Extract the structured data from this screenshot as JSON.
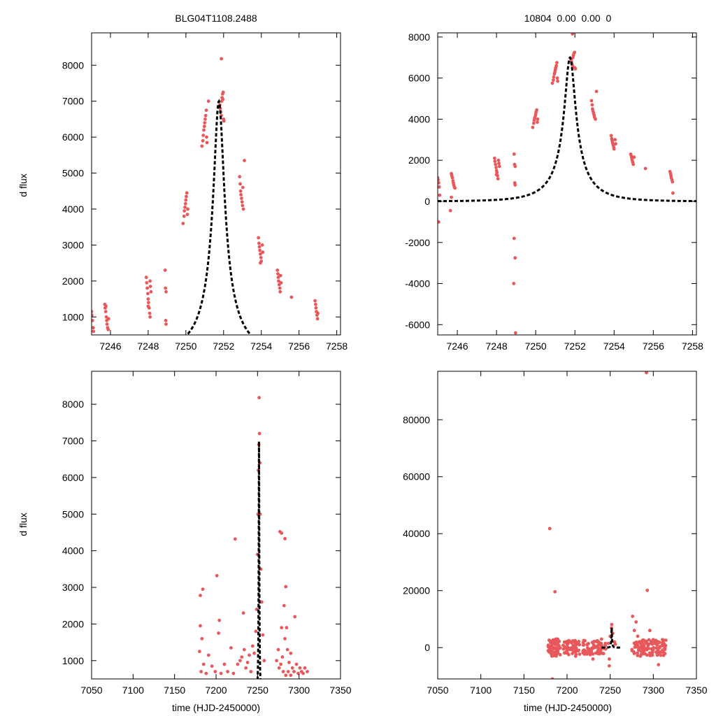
{
  "titles": {
    "left": "BLG04T1108.2488",
    "right": "10804  0.00  0.00  0"
  },
  "colors": {
    "points": "#e8585a",
    "model": "#000000",
    "frame": "#000000"
  },
  "chart_data": [
    {
      "id": "top-left",
      "type": "scatter",
      "title": "BLG04T1108.2488",
      "xlabel": "",
      "ylabel": "d flux",
      "xlim": [
        7245,
        7258.2
      ],
      "ylim": [
        500,
        8900
      ],
      "xticks": [
        7246,
        7248,
        7250,
        7252,
        7254,
        7256,
        7258
      ],
      "yticks": [
        1000,
        2000,
        3000,
        4000,
        5000,
        6000,
        7000,
        8000
      ],
      "model": {
        "t0": 7251.75,
        "peak": 7000,
        "tE": 1.9,
        "base": 0
      },
      "points": [
        [
          7245.0,
          1150
        ],
        [
          7245.02,
          1050
        ],
        [
          7245.05,
          900
        ],
        [
          7245.08,
          700
        ],
        [
          7245.1,
          600
        ],
        [
          7245.7,
          1350
        ],
        [
          7245.72,
          1250
        ],
        [
          7245.75,
          1150
        ],
        [
          7245.78,
          1000
        ],
        [
          7245.8,
          900
        ],
        [
          7245.82,
          800
        ],
        [
          7245.85,
          700
        ],
        [
          7245.88,
          650
        ],
        [
          7245.9,
          950
        ],
        [
          7245.76,
          1300
        ],
        [
          7247.9,
          2100
        ],
        [
          7247.92,
          1950
        ],
        [
          7247.95,
          1800
        ],
        [
          7247.98,
          1650
        ],
        [
          7248.0,
          1500
        ],
        [
          7248.02,
          1400
        ],
        [
          7248.05,
          1250
        ],
        [
          7248.08,
          1100
        ],
        [
          7248.1,
          2000
        ],
        [
          7248.12,
          1850
        ],
        [
          7248.15,
          1700
        ],
        [
          7248.0,
          1300
        ],
        [
          7248.1,
          1000
        ],
        [
          7248.9,
          2300
        ],
        [
          7248.92,
          1800
        ],
        [
          7248.95,
          1700
        ],
        [
          7248.93,
          900
        ],
        [
          7248.95,
          800
        ],
        [
          7249.85,
          3600
        ],
        [
          7249.9,
          3800
        ],
        [
          7249.92,
          3950
        ],
        [
          7249.95,
          4050
        ],
        [
          7249.98,
          4150
        ],
        [
          7250.0,
          4250
        ],
        [
          7250.02,
          4350
        ],
        [
          7250.05,
          4450
        ],
        [
          7250.08,
          3850
        ],
        [
          7250.1,
          4000
        ],
        [
          7250.85,
          5750
        ],
        [
          7250.9,
          5900
        ],
        [
          7250.92,
          6050
        ],
        [
          7250.95,
          6200
        ],
        [
          7250.98,
          6300
        ],
        [
          7251.0,
          6400
        ],
        [
          7251.02,
          6500
        ],
        [
          7251.05,
          6600
        ],
        [
          7251.08,
          6750
        ],
        [
          7251.1,
          6000
        ],
        [
          7251.12,
          5850
        ],
        [
          7251.2,
          7000
        ],
        [
          7251.8,
          6900
        ],
        [
          7251.82,
          6800
        ],
        [
          7251.85,
          6700
        ],
        [
          7251.88,
          6600
        ],
        [
          7251.9,
          7000
        ],
        [
          7251.92,
          7100
        ],
        [
          7251.95,
          7200
        ],
        [
          7251.98,
          7250
        ],
        [
          7252.0,
          6500
        ],
        [
          7252.02,
          6450
        ],
        [
          7251.88,
          8180
        ],
        [
          7251.96,
          7050
        ],
        [
          7252.85,
          4900
        ],
        [
          7252.88,
          4700
        ],
        [
          7252.9,
          4500
        ],
        [
          7252.92,
          4400
        ],
        [
          7252.95,
          4300
        ],
        [
          7252.98,
          4200
        ],
        [
          7253.0,
          4100
        ],
        [
          7253.05,
          4000
        ],
        [
          7253.1,
          5350
        ],
        [
          7253.02,
          4600
        ],
        [
          7253.85,
          3200
        ],
        [
          7253.88,
          3050
        ],
        [
          7253.9,
          2950
        ],
        [
          7253.92,
          2850
        ],
        [
          7253.95,
          2750
        ],
        [
          7253.98,
          2650
        ],
        [
          7254.0,
          2550
        ],
        [
          7254.05,
          3000
        ],
        [
          7254.08,
          2800
        ],
        [
          7253.95,
          2500
        ],
        [
          7254.85,
          2300
        ],
        [
          7254.88,
          2200
        ],
        [
          7254.9,
          2100
        ],
        [
          7254.92,
          2000
        ],
        [
          7254.95,
          1900
        ],
        [
          7254.98,
          1800
        ],
        [
          7255.0,
          1700
        ],
        [
          7255.02,
          2150
        ],
        [
          7255.05,
          1950
        ],
        [
          7255.6,
          1550
        ],
        [
          7256.85,
          1450
        ],
        [
          7256.88,
          1350
        ],
        [
          7256.9,
          1250
        ],
        [
          7256.92,
          1150
        ],
        [
          7256.95,
          1050
        ],
        [
          7256.98,
          950
        ],
        [
          7257.0,
          1100
        ]
      ]
    },
    {
      "id": "top-right",
      "type": "scatter",
      "title": "10804  0.00  0.00  0",
      "xlabel": "",
      "ylabel": "",
      "xlim": [
        7245,
        7258.2
      ],
      "ylim": [
        -6500,
        8200
      ],
      "xticks": [
        7246,
        7248,
        7250,
        7252,
        7254,
        7256,
        7258
      ],
      "yticks": [
        -6000,
        -4000,
        -2000,
        0,
        2000,
        4000,
        6000,
        8000
      ],
      "model": {
        "t0": 7251.75,
        "peak": 7000,
        "tE": 1.9,
        "base": 0
      },
      "points": [
        [
          7245.0,
          1150
        ],
        [
          7245.02,
          1050
        ],
        [
          7245.05,
          900
        ],
        [
          7245.08,
          700
        ],
        [
          7245.1,
          300
        ],
        [
          7245.05,
          -1000
        ],
        [
          7245.7,
          1350
        ],
        [
          7245.72,
          1250
        ],
        [
          7245.75,
          1150
        ],
        [
          7245.78,
          1000
        ],
        [
          7245.8,
          900
        ],
        [
          7245.82,
          800
        ],
        [
          7245.85,
          700
        ],
        [
          7245.88,
          650
        ],
        [
          7245.7,
          200
        ],
        [
          7245.65,
          -450
        ],
        [
          7247.9,
          2100
        ],
        [
          7247.92,
          1950
        ],
        [
          7247.95,
          1800
        ],
        [
          7247.98,
          1650
        ],
        [
          7248.0,
          1500
        ],
        [
          7248.02,
          1400
        ],
        [
          7248.05,
          1250
        ],
        [
          7248.08,
          1100
        ],
        [
          7248.1,
          2000
        ],
        [
          7248.12,
          1850
        ],
        [
          7248.15,
          1700
        ],
        [
          7248.0,
          1300
        ],
        [
          7248.9,
          2300
        ],
        [
          7248.92,
          1800
        ],
        [
          7248.95,
          1700
        ],
        [
          7248.93,
          900
        ],
        [
          7248.95,
          800
        ],
        [
          7248.9,
          -1800
        ],
        [
          7248.95,
          -2750
        ],
        [
          7248.88,
          -4000
        ],
        [
          7248.97,
          -6400
        ],
        [
          7249.85,
          3600
        ],
        [
          7249.9,
          3800
        ],
        [
          7249.92,
          3950
        ],
        [
          7249.95,
          4050
        ],
        [
          7249.98,
          4150
        ],
        [
          7250.0,
          4250
        ],
        [
          7250.02,
          4350
        ],
        [
          7250.05,
          4450
        ],
        [
          7250.08,
          3850
        ],
        [
          7250.1,
          4000
        ],
        [
          7250.85,
          5750
        ],
        [
          7250.9,
          5900
        ],
        [
          7250.92,
          6050
        ],
        [
          7250.95,
          6200
        ],
        [
          7250.98,
          6300
        ],
        [
          7251.0,
          6400
        ],
        [
          7251.02,
          6500
        ],
        [
          7251.05,
          6600
        ],
        [
          7251.08,
          6750
        ],
        [
          7251.1,
          6000
        ],
        [
          7251.12,
          5850
        ],
        [
          7251.8,
          6900
        ],
        [
          7251.82,
          6800
        ],
        [
          7251.85,
          6700
        ],
        [
          7251.88,
          6600
        ],
        [
          7251.9,
          7000
        ],
        [
          7251.92,
          7100
        ],
        [
          7251.95,
          7200
        ],
        [
          7251.98,
          7250
        ],
        [
          7252.0,
          6500
        ],
        [
          7252.02,
          6450
        ],
        [
          7251.88,
          8150
        ],
        [
          7252.85,
          4900
        ],
        [
          7252.88,
          4700
        ],
        [
          7252.9,
          4500
        ],
        [
          7252.92,
          4400
        ],
        [
          7252.95,
          4300
        ],
        [
          7252.98,
          4200
        ],
        [
          7253.0,
          4100
        ],
        [
          7253.05,
          4000
        ],
        [
          7253.1,
          5350
        ],
        [
          7253.85,
          3200
        ],
        [
          7253.88,
          3050
        ],
        [
          7253.9,
          2950
        ],
        [
          7253.92,
          2850
        ],
        [
          7253.95,
          2750
        ],
        [
          7253.98,
          2650
        ],
        [
          7254.0,
          2550
        ],
        [
          7254.05,
          3000
        ],
        [
          7254.08,
          2800
        ],
        [
          7254.85,
          2300
        ],
        [
          7254.88,
          2200
        ],
        [
          7254.9,
          2100
        ],
        [
          7254.92,
          2000
        ],
        [
          7254.95,
          1900
        ],
        [
          7254.98,
          1800
        ],
        [
          7255.02,
          2150
        ],
        [
          7255.6,
          1600
        ],
        [
          7256.85,
          1450
        ],
        [
          7256.88,
          1350
        ],
        [
          7256.9,
          1250
        ],
        [
          7256.92,
          1150
        ],
        [
          7256.95,
          1050
        ],
        [
          7256.98,
          950
        ],
        [
          7257.0,
          400
        ]
      ]
    },
    {
      "id": "bottom-left",
      "type": "scatter",
      "title": "",
      "xlabel": "time (HJD-2450000)",
      "ylabel": "d flux",
      "xlim": [
        7050,
        7350
      ],
      "ylim": [
        500,
        8900
      ],
      "xticks": [
        7050,
        7100,
        7150,
        7200,
        7250,
        7300,
        7350
      ],
      "yticks": [
        1000,
        2000,
        3000,
        4000,
        5000,
        6000,
        7000,
        8000
      ],
      "model": {
        "t0": 7251.75,
        "peak": 7000,
        "tE": 1.9,
        "base": 0
      },
      "points": [
        [
          7181,
          2780
        ],
        [
          7184,
          2950
        ],
        [
          7181,
          1950
        ],
        [
          7183,
          1600
        ],
        [
          7180,
          1250
        ],
        [
          7185,
          900
        ],
        [
          7182,
          700
        ],
        [
          7188,
          650
        ],
        [
          7191,
          1150
        ],
        [
          7195,
          850
        ],
        [
          7199,
          700
        ],
        [
          7203,
          1750
        ],
        [
          7204,
          2100
        ],
        [
          7201,
          3320
        ],
        [
          7206,
          650
        ],
        [
          7210,
          900
        ],
        [
          7214,
          700
        ],
        [
          7218,
          1350
        ],
        [
          7221,
          650
        ],
        [
          7223,
          4320
        ],
        [
          7226,
          900
        ],
        [
          7229,
          1000
        ],
        [
          7231,
          1100
        ],
        [
          7234,
          1300
        ],
        [
          7233,
          2300
        ],
        [
          7236,
          800
        ],
        [
          7238,
          950
        ],
        [
          7240,
          1150
        ],
        [
          7242,
          700
        ],
        [
          7244,
          1400
        ],
        [
          7246,
          1200
        ],
        [
          7248,
          1800
        ],
        [
          7249,
          2400
        ],
        [
          7250,
          3900
        ],
        [
          7250.5,
          5000
        ],
        [
          7251,
          6200
        ],
        [
          7251.5,
          6900
        ],
        [
          7251.9,
          8180
        ],
        [
          7252.3,
          7200
        ],
        [
          7252.8,
          6400
        ],
        [
          7253.2,
          5000
        ],
        [
          7254,
          3500
        ],
        [
          7255,
          2600
        ],
        [
          7256.5,
          1700
        ],
        [
          7258,
          1000
        ],
        [
          7277,
          4520
        ],
        [
          7279,
          4480
        ],
        [
          7283,
          4330
        ],
        [
          7284,
          3020
        ],
        [
          7282,
          2500
        ],
        [
          7285,
          1900
        ],
        [
          7286,
          1300
        ],
        [
          7280,
          1100
        ],
        [
          7278,
          900
        ],
        [
          7276,
          800
        ],
        [
          7281,
          700
        ],
        [
          7284,
          600
        ],
        [
          7288,
          950
        ],
        [
          7290,
          1200
        ],
        [
          7292,
          800
        ],
        [
          7294,
          700
        ],
        [
          7295,
          2200
        ],
        [
          7297,
          900
        ],
        [
          7299,
          650
        ],
        [
          7301,
          800
        ],
        [
          7303,
          700
        ],
        [
          7305,
          650
        ],
        [
          7307,
          800
        ],
        [
          7310,
          700
        ],
        [
          7273,
          1000
        ],
        [
          7275,
          1300
        ],
        [
          7279,
          1900
        ],
        [
          7283,
          1600
        ],
        [
          7287,
          700
        ],
        [
          7290,
          600
        ]
      ]
    },
    {
      "id": "bottom-right",
      "type": "scatter",
      "title": "",
      "xlabel": "time (HJD-2450000)",
      "ylabel": "",
      "xlim": [
        7050,
        7350
      ],
      "ylim": [
        -11000,
        97000
      ],
      "xticks": [
        7050,
        7100,
        7150,
        7200,
        7250,
        7300,
        7350
      ],
      "yticks": [
        0,
        20000,
        40000,
        60000,
        80000
      ],
      "model": {
        "t0": 7251.75,
        "peak": 7000,
        "tE": 1.9,
        "base": 0
      },
      "points": [
        [
          7180,
          41800
        ],
        [
          7186,
          19600
        ],
        [
          7183,
          -11000
        ],
        [
          7292,
          96500
        ],
        [
          7293,
          20100
        ],
        [
          7276,
          11000
        ],
        [
          7280,
          9000
        ],
        [
          7278,
          6000
        ],
        [
          7282,
          4000
        ],
        [
          7296,
          6000
        ],
        [
          7251.8,
          8100
        ],
        [
          7251.5,
          6900
        ],
        [
          7250,
          4000
        ],
        [
          7253,
          5000
        ],
        [
          7255,
          2000
        ],
        [
          7248,
          1500
        ],
        [
          7249,
          -6400
        ],
        [
          7249,
          -4000
        ],
        [
          7256,
          1200
        ],
        [
          7210,
          -3000
        ],
        [
          7220,
          2500
        ],
        [
          7230,
          -4000
        ],
        [
          7240,
          3000
        ],
        [
          7285,
          -3000
        ],
        [
          7300,
          2800
        ],
        [
          7306,
          -6000
        ],
        [
          7312,
          1500
        ],
        [
          7188,
          3000
        ],
        [
          7192,
          -2500
        ]
      ],
      "bands": [
        {
          "from": 7178,
          "to": 7192,
          "center": 0,
          "spread": 3000,
          "count": 70
        },
        {
          "from": 7195,
          "to": 7215,
          "center": 0,
          "spread": 2500,
          "count": 60
        },
        {
          "from": 7218,
          "to": 7245,
          "center": 0,
          "spread": 2500,
          "count": 70
        },
        {
          "from": 7275,
          "to": 7315,
          "center": 0,
          "spread": 2800,
          "count": 120
        }
      ]
    }
  ]
}
